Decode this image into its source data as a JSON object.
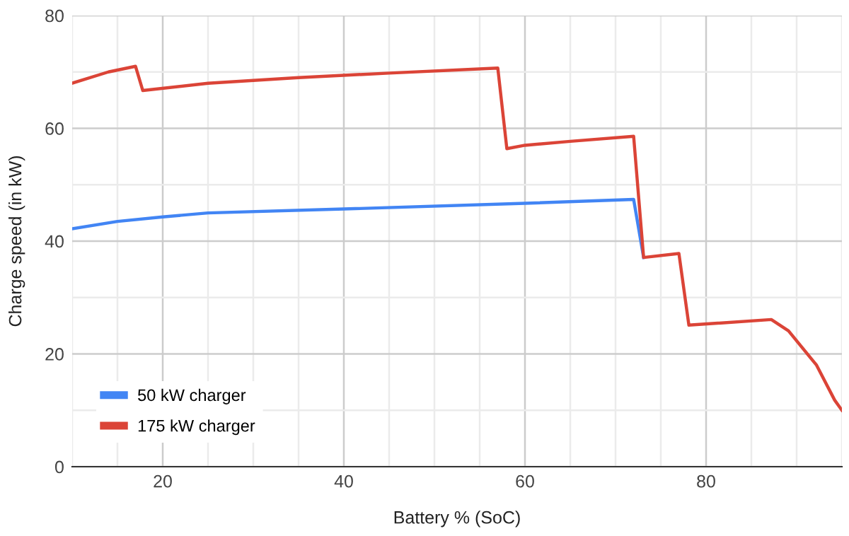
{
  "chart_data": {
    "type": "line",
    "xlabel": "Battery % (SoC)",
    "ylabel": "Charge speed (in kW)",
    "xlim": [
      10,
      95
    ],
    "ylim": [
      0,
      80
    ],
    "xticks": [
      20,
      40,
      60,
      80
    ],
    "yticks": [
      0,
      20,
      40,
      60,
      80
    ],
    "grid": true,
    "legend": "bottom left",
    "marker": "none",
    "line_style": "solid",
    "series": [
      {
        "name": "50 kW charger",
        "color": "#4285f4",
        "x": [
          10,
          15,
          20,
          25,
          40,
          60,
          72,
          73.1
        ],
        "values": [
          42.2,
          43.5,
          44.3,
          45,
          45.7,
          46.7,
          47.4,
          37.1
        ]
      },
      {
        "name": "175 kW charger",
        "color": "#db4437",
        "x": [
          10,
          14,
          17,
          17.8,
          25,
          35,
          45,
          57,
          58,
          60,
          65,
          72,
          73.1,
          77,
          78.1,
          87.2,
          89.1,
          92.2,
          94.2,
          95
        ],
        "values": [
          68,
          70,
          71,
          66.7,
          68,
          69,
          69.8,
          70.7,
          56.4,
          57,
          57.7,
          58.6,
          37.1,
          37.8,
          25.1,
          26.1,
          24.1,
          18,
          11.8,
          10
        ]
      }
    ]
  }
}
